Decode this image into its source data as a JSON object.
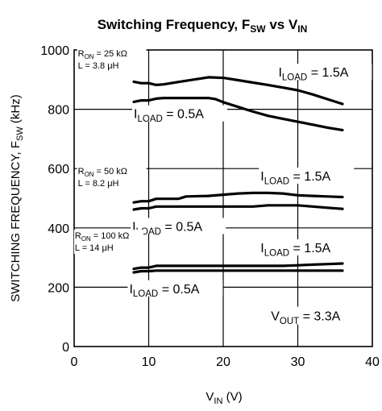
{
  "chart_data": {
    "type": "line",
    "title": {
      "main": "Switching Frequency, F",
      "main_sub": "SW",
      "mid": " vs V",
      "mid_sub": "IN"
    },
    "ylabel": {
      "main": "SWITCHING FREQUENCY, F",
      "sub": "SW",
      "tail": " (kHz)"
    },
    "xlabel": {
      "main": "V",
      "sub": "IN",
      "tail": " (V)"
    },
    "xlim": [
      0,
      40
    ],
    "ylim": [
      0,
      1000
    ],
    "xticks": [
      "0",
      "10",
      "20",
      "30",
      "40"
    ],
    "yticks": [
      "0",
      "200",
      "400",
      "600",
      "800",
      "1000"
    ],
    "grid": true,
    "series": [
      {
        "name": "ILOAD = 1.5A (RON = 25 kΩ)",
        "color": "#000000",
        "x": [
          8,
          9,
          10,
          11,
          12,
          14,
          16,
          18,
          20,
          22,
          24,
          26,
          28,
          30,
          32,
          34,
          36
        ],
        "y": [
          893,
          888,
          888,
          882,
          884,
          892,
          900,
          908,
          906,
          898,
          890,
          882,
          873,
          864,
          850,
          834,
          818
        ]
      },
      {
        "name": "ILOAD = 0.5A (RON = 25 kΩ)",
        "color": "#000000",
        "x": [
          8,
          9,
          10,
          11,
          12,
          14,
          16,
          18,
          19,
          20,
          22,
          24,
          26,
          28,
          30,
          32,
          34,
          36
        ],
        "y": [
          825,
          830,
          830,
          836,
          838,
          838,
          838,
          838,
          834,
          824,
          808,
          792,
          778,
          768,
          758,
          748,
          738,
          730
        ]
      },
      {
        "name": "ILOAD = 1.5A (RON = 50 kΩ)",
        "color": "#000000",
        "x": [
          8,
          9,
          10,
          11,
          12,
          14,
          15,
          18,
          20,
          22,
          24,
          26,
          28,
          30,
          32,
          34,
          36
        ],
        "y": [
          486,
          490,
          490,
          498,
          498,
          498,
          506,
          508,
          512,
          516,
          518,
          518,
          516,
          510,
          508,
          506,
          504
        ]
      },
      {
        "name": "ILOAD = 0.5A (RON = 50 kΩ)",
        "color": "#000000",
        "x": [
          8,
          9,
          10,
          11,
          12,
          14,
          16,
          18,
          20,
          22,
          24,
          26,
          28,
          30,
          32,
          34,
          36
        ],
        "y": [
          462,
          466,
          466,
          472,
          472,
          472,
          472,
          472,
          472,
          472,
          472,
          476,
          476,
          476,
          472,
          468,
          464
        ]
      },
      {
        "name": "ILOAD = 1.5A (RON = 100 kΩ)",
        "color": "#000000",
        "x": [
          8,
          9,
          10,
          11,
          12,
          14,
          16,
          18,
          20,
          22,
          24,
          26,
          28,
          30,
          32,
          34,
          36
        ],
        "y": [
          262,
          266,
          266,
          272,
          272,
          272,
          272,
          272,
          272,
          272,
          272,
          272,
          272,
          274,
          276,
          278,
          280
        ]
      },
      {
        "name": "ILOAD = 0.5A (RON = 100 kΩ)",
        "color": "#000000",
        "x": [
          8,
          9,
          10,
          11,
          12,
          14,
          16,
          18,
          20,
          22,
          24,
          26,
          28,
          30,
          32,
          34,
          36
        ],
        "y": [
          250,
          254,
          254,
          256,
          256,
          256,
          256,
          256,
          256,
          256,
          256,
          256,
          256,
          256,
          256,
          256,
          256
        ]
      }
    ],
    "curve_labels": [
      {
        "main": "I",
        "sub": "LOAD",
        "tail": " = 1.5A",
        "x": 27.4,
        "y": 910
      },
      {
        "main": "I",
        "sub": "LOAD",
        "tail": " = 0.5A",
        "x": 8.0,
        "y": 770
      },
      {
        "main": "I",
        "sub": "LOAD",
        "tail": " = 1.5A",
        "x": 25.0,
        "y": 560
      },
      {
        "main": "I",
        "sub": "LOAD",
        "tail": " = 0.5A",
        "x": 7.8,
        "y": 390
      },
      {
        "main": "I",
        "sub": "LOAD",
        "tail": " = 1.5A",
        "x": 25.0,
        "y": 318
      },
      {
        "main": "I",
        "sub": "LOAD",
        "tail": " = 0.5A",
        "x": 7.4,
        "y": 180
      }
    ],
    "group_annotations": [
      {
        "r_main": "R",
        "r_sub": "ON",
        "r_tail": " = 25 kΩ",
        "l_text": "L = 3.8 μH",
        "x": 0.5,
        "y": 978
      },
      {
        "r_main": "R",
        "r_sub": "ON",
        "r_tail": " = 50 kΩ",
        "l_text": "L = 8.2 μH",
        "x": 0.5,
        "y": 582
      },
      {
        "r_main": "R",
        "r_sub": "ON",
        "r_tail": " = 100 kΩ",
        "l_text": "L = 14 μH",
        "x": 0.1,
        "y": 364
      }
    ],
    "note": {
      "main": "V",
      "sub": "OUT",
      "tail": " = 3.3A",
      "x": 26.4,
      "y": 88
    }
  }
}
